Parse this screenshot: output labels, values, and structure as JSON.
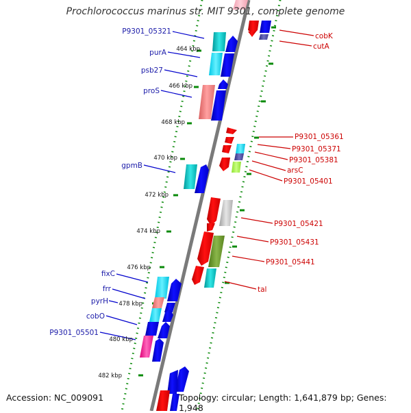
{
  "title": "Prochlorococcus marinus str. MIT 9301, complete genome",
  "accession": "Accession: NC_009091",
  "topology": "Topology: circular; Length: 1,641,879 bp; Genes: 1,948",
  "kbp_labels": [
    "464 kbp",
    "466 kbp",
    "468 kbp",
    "470 kbp",
    "472 kbp",
    "474 kbp",
    "476 kbp",
    "478 kbp",
    "480 kbp",
    "482 kbp"
  ],
  "left_labels": [
    "P9301_05321",
    "purA",
    "psb27",
    "proS",
    "gpmB",
    "fixC",
    "frr",
    "pyrH",
    "cobO",
    "P9301_05501"
  ],
  "right_labels": [
    "cobK",
    "cutA",
    "P9301_05361",
    "P9301_05371",
    "P9301_05381",
    "arsC",
    "P9301_05401",
    "P9301_05421",
    "P9301_05431",
    "P9301_05441",
    "tal"
  ],
  "colors": {
    "forward_gene": "#0000ee",
    "reverse_gene": "#ee0000",
    "forward_label": "#1a1aa8",
    "reverse_label": "#cc0000",
    "backbone": "#808080",
    "ring_dots": "#0a8a0a"
  }
}
